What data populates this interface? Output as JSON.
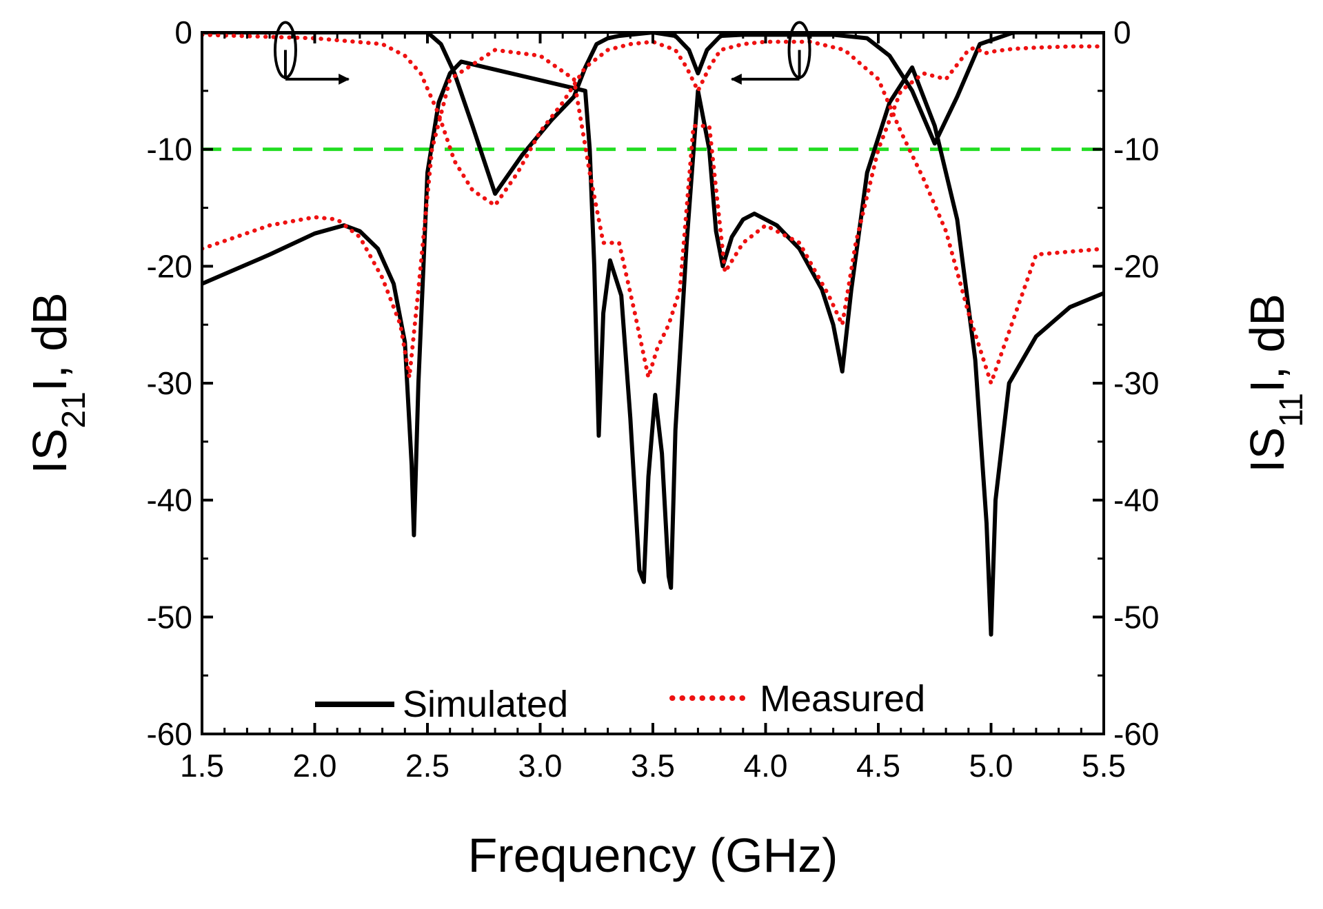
{
  "chart_data": {
    "type": "line",
    "xlabel": "Frequency (GHz)",
    "ylabel_left": {
      "main": "IS",
      "sub": "21",
      "tail": "I, dB"
    },
    "ylabel_right": {
      "main": "IS",
      "sub": "11",
      "tail": "I, dB"
    },
    "xlim": [
      1.5,
      5.5
    ],
    "ylim": [
      -60,
      0
    ],
    "x_ticks": [
      "1.5",
      "2.0",
      "2.5",
      "3.0",
      "3.5",
      "4.0",
      "4.5",
      "5.0",
      "5.5"
    ],
    "x_tick_values": [
      1.5,
      2.0,
      2.5,
      3.0,
      3.5,
      4.0,
      4.5,
      5.0,
      5.5
    ],
    "y_ticks": [
      "0",
      "-10",
      "-20",
      "-30",
      "-40",
      "-50",
      "-60"
    ],
    "y_tick_values": [
      0,
      -10,
      -20,
      -30,
      -40,
      -50,
      -60
    ],
    "reference_line": {
      "y": -10,
      "color": "#22dd22",
      "style": "dashed"
    },
    "annotations": [
      {
        "type": "curve-arrow",
        "ellipse_at": [
          1.87,
          -1.5
        ],
        "arrow_from": [
          1.87,
          -4.0
        ],
        "arrow_to": [
          2.15,
          -4.0
        ],
        "meaning": "S21 curves read on right axis"
      },
      {
        "type": "curve-arrow",
        "ellipse_at": [
          4.15,
          -1.5
        ],
        "arrow_from": [
          4.15,
          -4.0
        ],
        "arrow_to": [
          3.85,
          -4.0
        ],
        "meaning": "S11 curves read on left axis"
      }
    ],
    "legend": [
      {
        "label": "Simulated",
        "color": "#000000",
        "style": "solid"
      },
      {
        "label": "Measured",
        "color": "#ee1111",
        "style": "dotted"
      }
    ],
    "series": [
      {
        "name": "Simulated S21",
        "style": "solid",
        "color": "#000000",
        "x": [
          1.5,
          2.0,
          2.5,
          2.56,
          2.62,
          2.7,
          2.8,
          2.92,
          3.05,
          3.15,
          3.2,
          3.25,
          3.3,
          3.35,
          3.4,
          3.5,
          3.6,
          3.66,
          3.7,
          3.74,
          3.8,
          3.9,
          4.0,
          4.3,
          4.45,
          4.55,
          4.65,
          4.75,
          4.85,
          4.95,
          5.1,
          5.5
        ],
        "y": [
          0,
          0,
          0,
          -1.0,
          -3.5,
          -8.0,
          -13.8,
          -10.5,
          -7.5,
          -5.5,
          -3.0,
          -1.0,
          -0.5,
          -0.3,
          -0.2,
          0,
          -0.3,
          -1.5,
          -3.5,
          -1.5,
          -0.3,
          -0.2,
          -0.2,
          -0.2,
          -0.5,
          -2.0,
          -5.0,
          -9.5,
          -5.5,
          -1.0,
          0,
          0
        ]
      },
      {
        "name": "Simulated S11",
        "style": "solid",
        "color": "#000000",
        "x": [
          1.5,
          1.8,
          2.0,
          2.13,
          2.2,
          2.28,
          2.35,
          2.4,
          2.43,
          2.44,
          2.46,
          2.5,
          2.55,
          2.6,
          2.65,
          3.2,
          3.22,
          3.24,
          3.26,
          3.28,
          3.31,
          3.36,
          3.4,
          3.44,
          3.46,
          3.48,
          3.51,
          3.54,
          3.57,
          3.58,
          3.6,
          3.65,
          3.7,
          3.75,
          3.78,
          3.81,
          3.85,
          3.9,
          3.95,
          4.05,
          4.15,
          4.25,
          4.3,
          4.34,
          4.38,
          4.45,
          4.55,
          4.65,
          4.75,
          4.85,
          4.93,
          4.98,
          5.0,
          5.02,
          5.08,
          5.2,
          5.35,
          5.5
        ],
        "y": [
          -21.5,
          -19,
          -17.2,
          -16.5,
          -17.0,
          -18.5,
          -21.5,
          -26.5,
          -37.0,
          -43.0,
          -30.0,
          -12.0,
          -6.0,
          -3.5,
          -2.5,
          -5.0,
          -10.0,
          -20.0,
          -34.5,
          -24.0,
          -19.5,
          -22.5,
          -33.0,
          -46.0,
          -47.0,
          -38.0,
          -31.0,
          -36.0,
          -46.5,
          -47.5,
          -34.0,
          -18.0,
          -5.0,
          -10.0,
          -17.0,
          -20.0,
          -17.5,
          -16.0,
          -15.5,
          -16.5,
          -18.5,
          -22.0,
          -25.0,
          -29.0,
          -22.0,
          -12.0,
          -6.0,
          -3.0,
          -8.0,
          -16.0,
          -28.0,
          -42.0,
          -51.5,
          -40.0,
          -30.0,
          -26.0,
          -23.5,
          -22.3
        ]
      },
      {
        "name": "Measured S21",
        "style": "dotted",
        "color": "#ee1111",
        "x": [
          1.5,
          2.0,
          2.3,
          2.4,
          2.47,
          2.55,
          2.62,
          2.7,
          2.8,
          2.9,
          3.0,
          3.1,
          3.2,
          3.3,
          3.4,
          3.5,
          3.6,
          3.65,
          3.7,
          3.75,
          3.8,
          3.9,
          4.0,
          4.2,
          4.35,
          4.5,
          4.6,
          4.7,
          4.8,
          4.9,
          5.0,
          5.2,
          5.5
        ],
        "y": [
          -0.2,
          -0.5,
          -1.0,
          -2.0,
          -3.5,
          -7.0,
          -11.0,
          -13.5,
          -14.8,
          -12.0,
          -8.5,
          -6.0,
          -3.0,
          -1.5,
          -1.0,
          -0.8,
          -1.5,
          -3.0,
          -5.0,
          -3.0,
          -1.5,
          -1.0,
          -0.8,
          -0.8,
          -1.5,
          -4.0,
          -8.5,
          -12.5,
          -17.0,
          -24.0,
          -30.0,
          -19.0,
          -18.5
        ]
      },
      {
        "name": "Measured S11",
        "style": "dotted",
        "color": "#ee1111",
        "x": [
          1.5,
          1.8,
          2.0,
          2.1,
          2.2,
          2.3,
          2.38,
          2.42,
          2.46,
          2.52,
          2.6,
          2.8,
          3.0,
          3.15,
          3.22,
          3.28,
          3.35,
          3.42,
          3.48,
          3.52,
          3.57,
          3.62,
          3.68,
          3.75,
          3.82,
          3.9,
          4.0,
          4.15,
          4.28,
          4.34,
          4.4,
          4.5,
          4.6,
          4.7,
          4.8,
          4.9,
          4.93,
          4.97,
          5.02,
          5.1,
          5.2,
          5.35,
          5.5
        ],
        "y": [
          -18.5,
          -16.5,
          -15.8,
          -16.0,
          -17.5,
          -21.0,
          -25.0,
          -29.5,
          -22.0,
          -10.0,
          -4.0,
          -1.5,
          -2.0,
          -4.0,
          -12.0,
          -18.0,
          -18.0,
          -24.0,
          -29.5,
          -27.0,
          -25.0,
          -22.0,
          -8.0,
          -8.0,
          -20.5,
          -18.0,
          -16.5,
          -18.0,
          -22.5,
          -25.0,
          -18.0,
          -10.0,
          -5.0,
          -3.5,
          -4.0,
          -1.5,
          -1.3,
          -1.8,
          -1.6,
          -1.4,
          -1.3,
          -1.2,
          -1.2
        ]
      }
    ]
  }
}
